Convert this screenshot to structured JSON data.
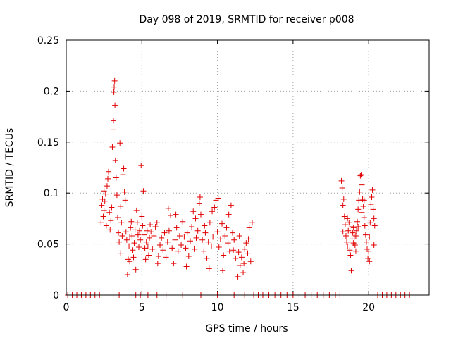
{
  "chart_data": {
    "type": "scatter",
    "title": "Day 098 of 2019, SRMTID for receiver p008",
    "xlabel": "GPS time / hours",
    "ylabel": "SRMTID / TECUs",
    "xlim": [
      0,
      24
    ],
    "ylim": [
      0,
      0.25
    ],
    "xticks": [
      0,
      5,
      10,
      15,
      20
    ],
    "xtick_labels": [
      "0",
      "5",
      "10",
      "15",
      "20"
    ],
    "yticks": [
      0,
      0.05,
      0.1,
      0.15,
      0.2,
      0.25
    ],
    "ytick_labels": [
      "0",
      "0.05",
      "0.1",
      "0.15",
      "0.2",
      "0.25"
    ],
    "grid": true,
    "marker": "+",
    "color": "#e00000",
    "series": [
      {
        "name": "SRMTID",
        "points": [
          [
            2.3,
            0.071
          ],
          [
            2.35,
            0.088
          ],
          [
            2.4,
            0.094
          ],
          [
            2.45,
            0.077
          ],
          [
            2.5,
            0.083
          ],
          [
            2.55,
            0.092
          ],
          [
            2.6,
            0.099
          ],
          [
            2.65,
            0.068
          ],
          [
            2.7,
            0.107
          ],
          [
            2.75,
            0.114
          ],
          [
            2.8,
            0.121
          ],
          [
            2.85,
            0.081
          ],
          [
            2.9,
            0.064
          ],
          [
            2.95,
            0.073
          ],
          [
            3.0,
            0.086
          ],
          [
            3.05,
            0.145
          ],
          [
            3.1,
            0.162
          ],
          [
            3.12,
            0.171
          ],
          [
            3.15,
            0.199
          ],
          [
            3.17,
            0.204
          ],
          [
            3.2,
            0.21
          ],
          [
            3.22,
            0.186
          ],
          [
            3.25,
            0.132
          ],
          [
            3.3,
            0.115
          ],
          [
            3.35,
            0.098
          ],
          [
            3.4,
            0.076
          ],
          [
            3.45,
            0.061
          ],
          [
            3.5,
            0.052
          ],
          [
            3.55,
            0.149
          ],
          [
            3.6,
            0.087
          ],
          [
            3.65,
            0.071
          ],
          [
            3.7,
            0.058
          ],
          [
            3.75,
            0.118
          ],
          [
            3.8,
            0.124
          ],
          [
            3.85,
            0.101
          ],
          [
            3.9,
            0.093
          ],
          [
            3.95,
            0.062
          ],
          [
            4.0,
            0.054
          ],
          [
            4.05,
            0.02
          ],
          [
            4.1,
            0.035
          ],
          [
            4.15,
            0.048
          ],
          [
            4.2,
            0.057
          ],
          [
            4.25,
            0.066
          ],
          [
            4.3,
            0.072
          ],
          [
            4.35,
            0.058
          ],
          [
            4.4,
            0.044
          ],
          [
            4.45,
            0.037
          ],
          [
            4.5,
            0.051
          ],
          [
            4.55,
            0.064
          ],
          [
            4.6,
            0.025
          ],
          [
            4.65,
            0.083
          ],
          [
            4.7,
            0.071
          ],
          [
            4.75,
            0.059
          ],
          [
            4.8,
            0.047
          ],
          [
            4.85,
            0.063
          ],
          [
            4.9,
            0.054
          ],
          [
            4.95,
            0.127
          ],
          [
            5.0,
            0.077
          ],
          [
            5.05,
            0.068
          ],
          [
            5.1,
            0.102
          ],
          [
            5.15,
            0.059
          ],
          [
            5.2,
            0.046
          ],
          [
            5.25,
            0.035
          ],
          [
            5.3,
            0.052
          ],
          [
            5.35,
            0.063
          ],
          [
            5.4,
            0.048
          ],
          [
            5.45,
            0.039
          ],
          [
            5.5,
            0.056
          ],
          [
            5.6,
            0.062
          ],
          [
            5.7,
            0.045
          ],
          [
            5.8,
            0.058
          ],
          [
            5.9,
            0.067
          ],
          [
            6.0,
            0.071
          ],
          [
            6.1,
            0.038
          ],
          [
            6.2,
            0.049
          ],
          [
            6.3,
            0.056
          ],
          [
            6.4,
            0.044
          ],
          [
            6.5,
            0.061
          ],
          [
            6.6,
            0.037
          ],
          [
            6.7,
            0.052
          ],
          [
            6.8,
            0.063
          ],
          [
            6.9,
            0.078
          ],
          [
            7.0,
            0.046
          ],
          [
            7.1,
            0.031
          ],
          [
            7.2,
            0.054
          ],
          [
            7.3,
            0.066
          ],
          [
            7.4,
            0.043
          ],
          [
            7.5,
            0.058
          ],
          [
            7.6,
            0.049
          ],
          [
            7.7,
            0.072
          ],
          [
            7.8,
            0.057
          ],
          [
            7.9,
            0.046
          ],
          [
            8.0,
            0.061
          ],
          [
            8.1,
            0.038
          ],
          [
            8.2,
            0.053
          ],
          [
            8.3,
            0.067
          ],
          [
            8.4,
            0.082
          ],
          [
            8.5,
            0.045
          ],
          [
            8.6,
            0.056
          ],
          [
            8.7,
            0.063
          ],
          [
            8.8,
            0.09
          ],
          [
            8.85,
            0.096
          ],
          [
            8.9,
            0.079
          ],
          [
            9.0,
            0.054
          ],
          [
            9.1,
            0.043
          ],
          [
            9.2,
            0.061
          ],
          [
            9.3,
            0.036
          ],
          [
            9.4,
            0.052
          ],
          [
            9.5,
            0.071
          ],
          [
            9.6,
            0.048
          ],
          [
            9.7,
            0.057
          ],
          [
            9.8,
            0.086
          ],
          [
            9.9,
            0.093
          ],
          [
            10.0,
            0.062
          ],
          [
            10.1,
            0.047
          ],
          [
            10.2,
            0.055
          ],
          [
            10.3,
            0.07
          ],
          [
            10.4,
            0.039
          ],
          [
            10.5,
            0.058
          ],
          [
            10.6,
            0.066
          ],
          [
            10.7,
            0.051
          ],
          [
            10.8,
            0.043
          ],
          [
            10.9,
            0.088
          ],
          [
            11.0,
            0.061
          ],
          [
            11.1,
            0.054
          ],
          [
            11.2,
            0.036
          ],
          [
            11.3,
            0.048
          ],
          [
            11.4,
            0.042
          ],
          [
            11.5,
            0.029
          ],
          [
            11.6,
            0.037
          ],
          [
            11.7,
            0.022
          ],
          [
            11.8,
            0.045
          ],
          [
            11.9,
            0.051
          ],
          [
            12.0,
            0.041
          ],
          [
            12.1,
            0.066
          ],
          [
            12.2,
            0.033
          ],
          [
            12.3,
            0.071
          ],
          [
            2.5,
            0.102
          ],
          [
            3.6,
            0.041
          ],
          [
            4.2,
            0.033
          ],
          [
            5.55,
            0.069
          ],
          [
            6.05,
            0.031
          ],
          [
            6.75,
            0.085
          ],
          [
            7.25,
            0.079
          ],
          [
            7.95,
            0.028
          ],
          [
            8.55,
            0.075
          ],
          [
            9.15,
            0.068
          ],
          [
            9.45,
            0.026
          ],
          [
            10.05,
            0.095
          ],
          [
            10.35,
            0.024
          ],
          [
            10.75,
            0.079
          ],
          [
            11.05,
            0.044
          ],
          [
            11.45,
            0.058
          ],
          [
            11.75,
            0.031
          ],
          [
            12.05,
            0.055
          ],
          [
            11.35,
            0.018
          ],
          [
            9.65,
            0.082
          ],
          [
            18.2,
            0.112
          ],
          [
            18.25,
            0.105
          ],
          [
            18.3,
            0.088
          ],
          [
            18.35,
            0.094
          ],
          [
            18.4,
            0.077
          ],
          [
            18.45,
            0.069
          ],
          [
            18.5,
            0.058
          ],
          [
            18.55,
            0.052
          ],
          [
            18.6,
            0.048
          ],
          [
            18.65,
            0.063
          ],
          [
            18.7,
            0.071
          ],
          [
            18.75,
            0.044
          ],
          [
            18.8,
            0.039
          ],
          [
            18.85,
            0.024
          ],
          [
            18.9,
            0.055
          ],
          [
            18.95,
            0.061
          ],
          [
            19.0,
            0.066
          ],
          [
            19.05,
            0.057
          ],
          [
            19.1,
            0.049
          ],
          [
            19.15,
            0.043
          ],
          [
            19.2,
            0.063
          ],
          [
            19.25,
            0.072
          ],
          [
            19.3,
            0.084
          ],
          [
            19.35,
            0.093
          ],
          [
            19.4,
            0.101
          ],
          [
            19.45,
            0.117
          ],
          [
            19.5,
            0.118
          ],
          [
            19.55,
            0.108
          ],
          [
            19.6,
            0.094
          ],
          [
            19.65,
            0.087
          ],
          [
            19.7,
            0.076
          ],
          [
            19.75,
            0.068
          ],
          [
            19.8,
            0.059
          ],
          [
            19.85,
            0.052
          ],
          [
            19.9,
            0.045
          ],
          [
            19.95,
            0.036
          ],
          [
            20.0,
            0.043
          ],
          [
            20.05,
            0.057
          ],
          [
            20.1,
            0.071
          ],
          [
            20.15,
            0.089
          ],
          [
            20.2,
            0.096
          ],
          [
            20.25,
            0.103
          ],
          [
            20.3,
            0.084
          ],
          [
            20.35,
            0.075
          ],
          [
            20.4,
            0.068
          ],
          [
            18.3,
            0.062
          ],
          [
            18.6,
            0.075
          ],
          [
            19.0,
            0.051
          ],
          [
            19.3,
            0.067
          ],
          [
            19.7,
            0.093
          ],
          [
            20.05,
            0.033
          ],
          [
            19.55,
            0.081
          ],
          [
            18.9,
            0.067
          ],
          [
            20.35,
            0.049
          ],
          [
            19.15,
            0.058
          ],
          [
            0.1,
            0
          ],
          [
            0.4,
            0
          ],
          [
            0.7,
            0
          ],
          [
            1.0,
            0
          ],
          [
            1.3,
            0
          ],
          [
            1.6,
            0
          ],
          [
            1.9,
            0
          ],
          [
            2.2,
            0
          ],
          [
            3.1,
            0
          ],
          [
            3.5,
            0
          ],
          [
            4.6,
            0
          ],
          [
            4.9,
            0
          ],
          [
            5.4,
            0
          ],
          [
            6.0,
            0
          ],
          [
            6.6,
            0
          ],
          [
            7.2,
            0
          ],
          [
            7.7,
            0
          ],
          [
            8.9,
            0
          ],
          [
            10.0,
            0
          ],
          [
            11.1,
            0
          ],
          [
            11.8,
            0
          ],
          [
            12.4,
            0
          ],
          [
            12.7,
            0
          ],
          [
            13.0,
            0
          ],
          [
            13.4,
            0
          ],
          [
            13.8,
            0
          ],
          [
            14.2,
            0
          ],
          [
            14.6,
            0
          ],
          [
            15.0,
            0
          ],
          [
            15.4,
            0
          ],
          [
            15.8,
            0
          ],
          [
            16.2,
            0
          ],
          [
            16.6,
            0
          ],
          [
            17.0,
            0
          ],
          [
            17.4,
            0
          ],
          [
            17.8,
            0
          ],
          [
            18.1,
            0
          ],
          [
            20.6,
            0
          ],
          [
            20.9,
            0
          ],
          [
            21.2,
            0
          ],
          [
            21.5,
            0
          ],
          [
            21.8,
            0
          ],
          [
            22.1,
            0
          ],
          [
            22.4,
            0
          ],
          [
            22.7,
            0
          ]
        ]
      }
    ]
  }
}
